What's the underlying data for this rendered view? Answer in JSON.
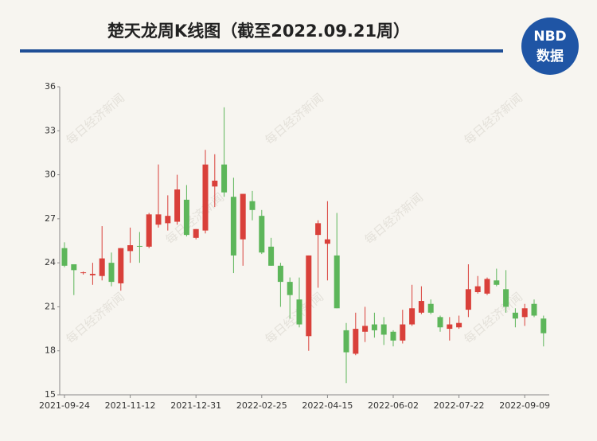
{
  "chart_data": {
    "type": "candlestick",
    "title": "楚天龙周K线图（截至2022.09.21周）",
    "logo": {
      "top": "NBD",
      "bottom": "数据"
    },
    "watermark": "每日经济新闻",
    "categories": [
      "2021-09-24",
      null,
      null,
      null,
      null,
      null,
      null,
      "2021-11-12",
      null,
      null,
      null,
      null,
      null,
      null,
      "2021-12-31",
      null,
      null,
      null,
      null,
      null,
      null,
      "2022-02-25",
      null,
      null,
      null,
      null,
      null,
      null,
      "2022-04-15",
      null,
      null,
      null,
      null,
      null,
      null,
      "2022-06-02",
      null,
      null,
      null,
      null,
      null,
      null,
      "2022-07-22",
      null,
      null,
      null,
      null,
      null,
      null,
      "2022-09-09",
      null,
      null
    ],
    "open": [
      25.0,
      23.9,
      23.3,
      23.15,
      23.1,
      24.0,
      22.6,
      24.8,
      25.15,
      25.1,
      26.6,
      26.7,
      26.8,
      28.3,
      25.7,
      26.2,
      29.2,
      30.7,
      28.5,
      25.6,
      28.2,
      27.2,
      25.1,
      23.8,
      22.7,
      21.5,
      19.0,
      25.9,
      25.3,
      24.5,
      19.4,
      17.8,
      19.3,
      19.8,
      19.8,
      19.3,
      18.7,
      19.8,
      20.6,
      21.2,
      20.3,
      19.5,
      19.6,
      20.8,
      22.0,
      21.9,
      22.8,
      22.2,
      20.6,
      20.3,
      21.2,
      20.2
    ],
    "high": [
      25.4,
      23.9,
      23.4,
      24.0,
      26.5,
      24.7,
      25.0,
      26.4,
      26.1,
      27.4,
      30.7,
      28.6,
      30.0,
      29.3,
      26.3,
      31.7,
      31.4,
      34.6,
      29.8,
      28.7,
      28.9,
      27.6,
      25.7,
      24.0,
      23.0,
      23.0,
      24.5,
      26.9,
      28.2,
      27.4,
      19.9,
      20.6,
      21.0,
      20.6,
      20.3,
      19.4,
      20.8,
      22.5,
      22.4,
      21.5,
      20.4,
      20.3,
      20.4,
      23.9,
      23.1,
      23.0,
      23.6,
      23.5,
      20.9,
      21.2,
      21.5,
      20.4
    ],
    "low": [
      23.7,
      21.8,
      23.2,
      22.5,
      22.8,
      22.4,
      22.1,
      24.0,
      24.0,
      25.0,
      26.4,
      26.2,
      26.6,
      25.8,
      25.6,
      26.0,
      27.8,
      28.5,
      23.3,
      23.8,
      26.9,
      24.6,
      23.8,
      21.0,
      20.2,
      19.6,
      18.0,
      22.3,
      22.8,
      20.9,
      15.8,
      17.7,
      18.6,
      18.9,
      18.4,
      18.3,
      18.5,
      19.7,
      20.5,
      20.5,
      19.3,
      18.7,
      19.5,
      20.3,
      21.9,
      21.8,
      22.4,
      20.6,
      19.6,
      19.7,
      20.3,
      18.3
    ],
    "close": [
      23.8,
      23.5,
      23.35,
      23.25,
      24.3,
      22.7,
      25.0,
      25.2,
      25.1,
      27.3,
      27.3,
      27.2,
      29.0,
      25.9,
      26.3,
      30.7,
      29.6,
      28.8,
      24.5,
      28.7,
      27.6,
      24.7,
      23.8,
      22.7,
      21.8,
      19.8,
      24.5,
      26.7,
      25.6,
      20.9,
      17.9,
      19.5,
      19.7,
      19.4,
      19.1,
      18.7,
      19.8,
      20.9,
      21.4,
      20.6,
      19.6,
      19.8,
      19.9,
      22.2,
      22.4,
      22.9,
      22.5,
      21.0,
      20.2,
      20.9,
      20.4,
      19.2
    ],
    "up_color": "#d9403a",
    "down_color": "#5db65a",
    "ylim": [
      15,
      36
    ],
    "yticks": [
      15,
      18,
      21,
      24,
      27,
      30,
      33,
      36
    ],
    "grid": false
  }
}
